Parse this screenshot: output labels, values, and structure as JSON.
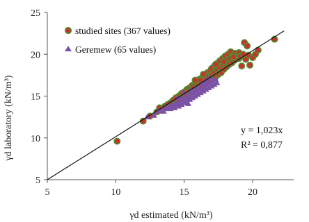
{
  "chart_data": {
    "type": "scatter",
    "title": "",
    "xlabel": "γd estimated  (kN/m³)",
    "ylabel": "γd laboratory (kN/m³)",
    "xlim": [
      5,
      23
    ],
    "ylim": [
      5,
      25
    ],
    "x_ticks": [
      5,
      10,
      15,
      20
    ],
    "y_ticks": [
      5,
      10,
      15,
      20,
      25
    ],
    "grid": false,
    "legend_position": "top-left",
    "colors": {
      "studied_fill": "#c8322e",
      "studied_edge": "#4f8f2e",
      "geremew": "#7b52a6",
      "fit_line": "#111111"
    },
    "series": [
      {
        "name": "studied sites (367 values)",
        "marker": "circle",
        "points": [
          [
            10.1,
            9.6
          ],
          [
            12.0,
            12.0
          ],
          [
            12.5,
            12.6
          ],
          [
            13.0,
            13.1
          ],
          [
            13.2,
            13.6
          ],
          [
            13.4,
            13.3
          ],
          [
            13.6,
            13.8
          ],
          [
            13.8,
            14.0
          ],
          [
            14.0,
            14.2
          ],
          [
            14.0,
            13.7
          ],
          [
            14.2,
            14.5
          ],
          [
            14.3,
            13.9
          ],
          [
            14.4,
            14.8
          ],
          [
            14.5,
            14.3
          ],
          [
            14.6,
            15.0
          ],
          [
            14.7,
            14.6
          ],
          [
            14.8,
            15.3
          ],
          [
            14.9,
            14.9
          ],
          [
            15.0,
            15.5
          ],
          [
            15.0,
            14.8
          ],
          [
            15.1,
            15.2
          ],
          [
            15.2,
            15.8
          ],
          [
            15.3,
            15.0
          ],
          [
            15.3,
            15.6
          ],
          [
            15.4,
            16.0
          ],
          [
            15.5,
            15.4
          ],
          [
            15.5,
            15.9
          ],
          [
            15.6,
            16.3
          ],
          [
            15.7,
            15.6
          ],
          [
            15.7,
            16.1
          ],
          [
            15.8,
            16.5
          ],
          [
            15.9,
            15.8
          ],
          [
            15.9,
            16.8
          ],
          [
            16.0,
            16.2
          ],
          [
            16.0,
            16.6
          ],
          [
            16.1,
            15.9
          ],
          [
            16.1,
            17.0
          ],
          [
            16.2,
            16.4
          ],
          [
            16.3,
            17.2
          ],
          [
            16.3,
            16.0
          ],
          [
            16.4,
            16.8
          ],
          [
            16.5,
            17.5
          ],
          [
            16.5,
            16.5
          ],
          [
            16.6,
            17.0
          ],
          [
            16.7,
            17.8
          ],
          [
            16.7,
            16.6
          ],
          [
            16.8,
            17.3
          ],
          [
            16.9,
            18.0
          ],
          [
            16.9,
            16.8
          ],
          [
            17.0,
            17.5
          ],
          [
            17.0,
            18.3
          ],
          [
            17.1,
            17.0
          ],
          [
            17.2,
            17.8
          ],
          [
            17.2,
            18.6
          ],
          [
            17.3,
            17.3
          ],
          [
            17.4,
            18.1
          ],
          [
            17.4,
            18.9
          ],
          [
            17.5,
            17.6
          ],
          [
            17.6,
            18.4
          ],
          [
            17.6,
            19.2
          ],
          [
            17.7,
            17.8
          ],
          [
            17.8,
            18.7
          ],
          [
            17.8,
            19.5
          ],
          [
            17.9,
            18.2
          ],
          [
            18.0,
            19.0
          ],
          [
            18.0,
            19.8
          ],
          [
            18.1,
            18.5
          ],
          [
            18.2,
            19.3
          ],
          [
            18.2,
            20.0
          ],
          [
            18.3,
            18.8
          ],
          [
            18.4,
            19.6
          ],
          [
            18.4,
            20.3
          ],
          [
            18.5,
            19.0
          ],
          [
            18.6,
            19.9
          ],
          [
            18.7,
            19.3
          ],
          [
            18.7,
            20.1
          ],
          [
            18.8,
            19.6
          ],
          [
            18.9,
            20.0
          ],
          [
            19.0,
            19.5
          ],
          [
            19.0,
            20.2
          ],
          [
            19.1,
            19.8
          ],
          [
            19.2,
            18.6
          ],
          [
            19.3,
            20.0
          ],
          [
            19.4,
            21.4
          ],
          [
            19.5,
            19.4
          ],
          [
            19.6,
            21.0
          ],
          [
            19.7,
            19.9
          ],
          [
            19.8,
            18.7
          ],
          [
            20.0,
            19.6
          ],
          [
            20.2,
            20.0
          ],
          [
            20.4,
            20.5
          ],
          [
            21.6,
            21.8
          ],
          [
            16.4,
            17.6
          ],
          [
            16.2,
            16.9
          ],
          [
            15.8,
            16.9
          ],
          [
            17.3,
            18.8
          ],
          [
            18.6,
            19.7
          ],
          [
            17.9,
            19.1
          ]
        ]
      },
      {
        "name": "Geremew (65 values)",
        "marker": "triangle",
        "points": [
          [
            12.3,
            12.5
          ],
          [
            12.8,
            12.7
          ],
          [
            13.1,
            13.2
          ],
          [
            13.3,
            13.4
          ],
          [
            13.5,
            13.2
          ],
          [
            13.6,
            13.5
          ],
          [
            13.8,
            13.6
          ],
          [
            13.9,
            13.9
          ],
          [
            14.0,
            13.5
          ],
          [
            14.1,
            13.8
          ],
          [
            14.2,
            14.1
          ],
          [
            14.3,
            13.6
          ],
          [
            14.4,
            13.9
          ],
          [
            14.5,
            14.2
          ],
          [
            14.6,
            13.8
          ],
          [
            14.7,
            14.4
          ],
          [
            14.8,
            14.0
          ],
          [
            14.9,
            14.6
          ],
          [
            15.0,
            14.2
          ],
          [
            15.1,
            14.8
          ],
          [
            15.2,
            14.4
          ],
          [
            15.3,
            15.0
          ],
          [
            15.4,
            14.6
          ],
          [
            15.5,
            15.2
          ],
          [
            15.6,
            14.8
          ],
          [
            15.7,
            15.4
          ],
          [
            15.8,
            15.0
          ],
          [
            15.9,
            15.6
          ],
          [
            16.0,
            15.2
          ],
          [
            16.1,
            15.8
          ],
          [
            16.2,
            15.4
          ],
          [
            16.3,
            16.0
          ],
          [
            16.4,
            15.6
          ],
          [
            16.5,
            16.2
          ],
          [
            16.6,
            15.8
          ],
          [
            16.7,
            16.4
          ],
          [
            16.8,
            16.0
          ],
          [
            16.9,
            16.6
          ],
          [
            17.0,
            16.2
          ],
          [
            17.1,
            16.8
          ],
          [
            17.2,
            16.4
          ],
          [
            17.3,
            17.0
          ],
          [
            17.4,
            16.6
          ],
          [
            15.0,
            15.4
          ],
          [
            15.5,
            15.7
          ],
          [
            16.0,
            16.0
          ],
          [
            16.5,
            16.6
          ],
          [
            17.0,
            17.0
          ],
          [
            14.5,
            14.8
          ],
          [
            15.3,
            14.1
          ],
          [
            16.6,
            16.9
          ],
          [
            16.9,
            17.2
          ],
          [
            15.8,
            15.9
          ],
          [
            14.8,
            14.8
          ],
          [
            16.3,
            16.5
          ]
        ]
      }
    ],
    "fit_line": {
      "x": [
        5,
        22.3
      ],
      "y": [
        5,
        22.8
      ]
    },
    "annotations": [
      "y = 1,023x",
      "R² = 0,877"
    ]
  }
}
